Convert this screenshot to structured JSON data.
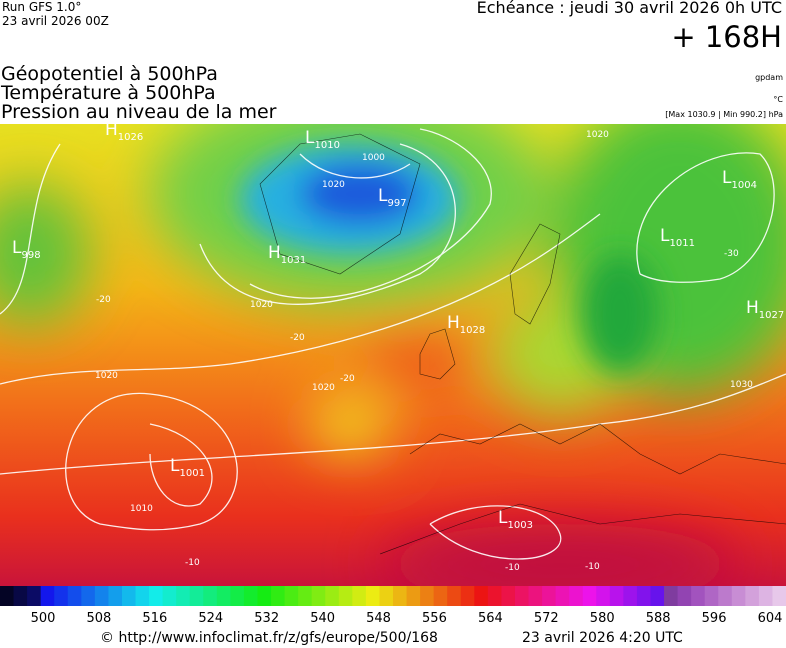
{
  "header": {
    "run": "Run GFS 1.0°",
    "run_date": "23 avril 2026 00Z",
    "echeance": "Echéance : jeudi 30 avril 2026 0h UTC",
    "horizon": "+ 168H"
  },
  "titles": [
    "Géopotentiel à 500hPa",
    "Température à 500hPa",
    "Pression au niveau de la mer"
  ],
  "units": {
    "geopotential": "gpdam",
    "temperature": "°C",
    "pressure": "[Max 1030.9 | Min 990.2] hPa"
  },
  "centers": [
    {
      "letter": "H",
      "value": "1026"
    },
    {
      "letter": "L",
      "value": "1010"
    },
    {
      "letter": "L",
      "value": "998"
    },
    {
      "letter": "H",
      "value": "1031"
    },
    {
      "letter": "L",
      "value": "997"
    },
    {
      "letter": "H",
      "value": "1028"
    },
    {
      "letter": "L",
      "value": "1004"
    },
    {
      "letter": "L",
      "value": "1011"
    },
    {
      "letter": "H",
      "value": "1027"
    },
    {
      "letter": "L",
      "value": "1001"
    },
    {
      "letter": "L",
      "value": "1003"
    }
  ],
  "contour_labels": [
    "1020",
    "1010",
    "-20",
    "1020",
    "-20",
    "1030",
    "-30",
    "-10",
    "-10",
    "-10",
    "1020",
    "-20",
    "1020",
    "1000",
    "1020"
  ],
  "colorbar": {
    "ticks": [
      500,
      508,
      516,
      524,
      532,
      540,
      548,
      556,
      564,
      572,
      580,
      588,
      596,
      604
    ]
  },
  "footer": {
    "source": "© http://www.infoclimat.fr/z/gfs/europe/500/168",
    "date": "23 avril 2026  4:20 UTC"
  }
}
